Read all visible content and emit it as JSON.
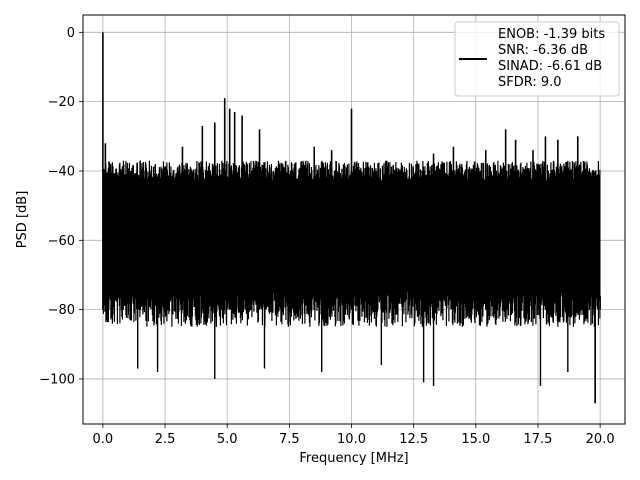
{
  "chart_data": {
    "type": "line",
    "title": "",
    "xlabel": "Frequency [MHz]",
    "ylabel": "PSD [dB]",
    "xlim": [
      -0.8,
      21.0
    ],
    "ylim": [
      -113,
      5
    ],
    "xticks": [
      0.0,
      2.5,
      5.0,
      7.5,
      10.0,
      12.5,
      15.0,
      17.5,
      20.0
    ],
    "xtick_labels": [
      "0.0",
      "2.5",
      "5.0",
      "7.5",
      "10.0",
      "12.5",
      "15.0",
      "17.5",
      "20.0"
    ],
    "yticks": [
      0,
      -20,
      -40,
      -60,
      -80,
      -100
    ],
    "ytick_labels": [
      "0",
      "−20",
      "−40",
      "−60",
      "−80",
      "−100"
    ],
    "grid": true,
    "legend": {
      "placement": "top-right",
      "lines": [
        "ENOB: -1.39 bits",
        "SNR: -6.36 dB",
        "SINAD: -6.61 dB",
        "SFDR: 9.0"
      ]
    },
    "series": [
      {
        "color": "#000000",
        "noise_floor": {
          "x_range": [
            0.0,
            20.0
          ],
          "upper_envelope_db": -40,
          "lower_envelope_db": -80
        },
        "x": [
          0.0,
          0.1,
          1.5,
          3.2,
          4.0,
          4.5,
          4.9,
          5.1,
          5.3,
          5.6,
          6.3,
          8.5,
          9.2,
          10.0,
          11.0,
          13.3,
          14.1,
          15.4,
          16.2,
          16.6,
          17.3,
          17.8,
          18.3,
          19.1,
          19.8,
          20.0
        ],
        "y": [
          0,
          -32,
          -37,
          -33,
          -27,
          -26,
          -19,
          -22,
          -23,
          -24,
          -28,
          -33,
          -34,
          -22,
          -40,
          -35,
          -33,
          -34,
          -28,
          -31,
          -34,
          -30,
          -31,
          -30,
          -107,
          -76
        ],
        "visible_dips_x": [
          1.4,
          2.2,
          4.5,
          6.5,
          8.8,
          11.2,
          12.9,
          13.3,
          17.6,
          18.7,
          19.8
        ],
        "visible_dips_y": [
          -97,
          -98,
          -100,
          -97,
          -98,
          -96,
          -101,
          -102,
          -102,
          -98,
          -107
        ]
      }
    ]
  }
}
